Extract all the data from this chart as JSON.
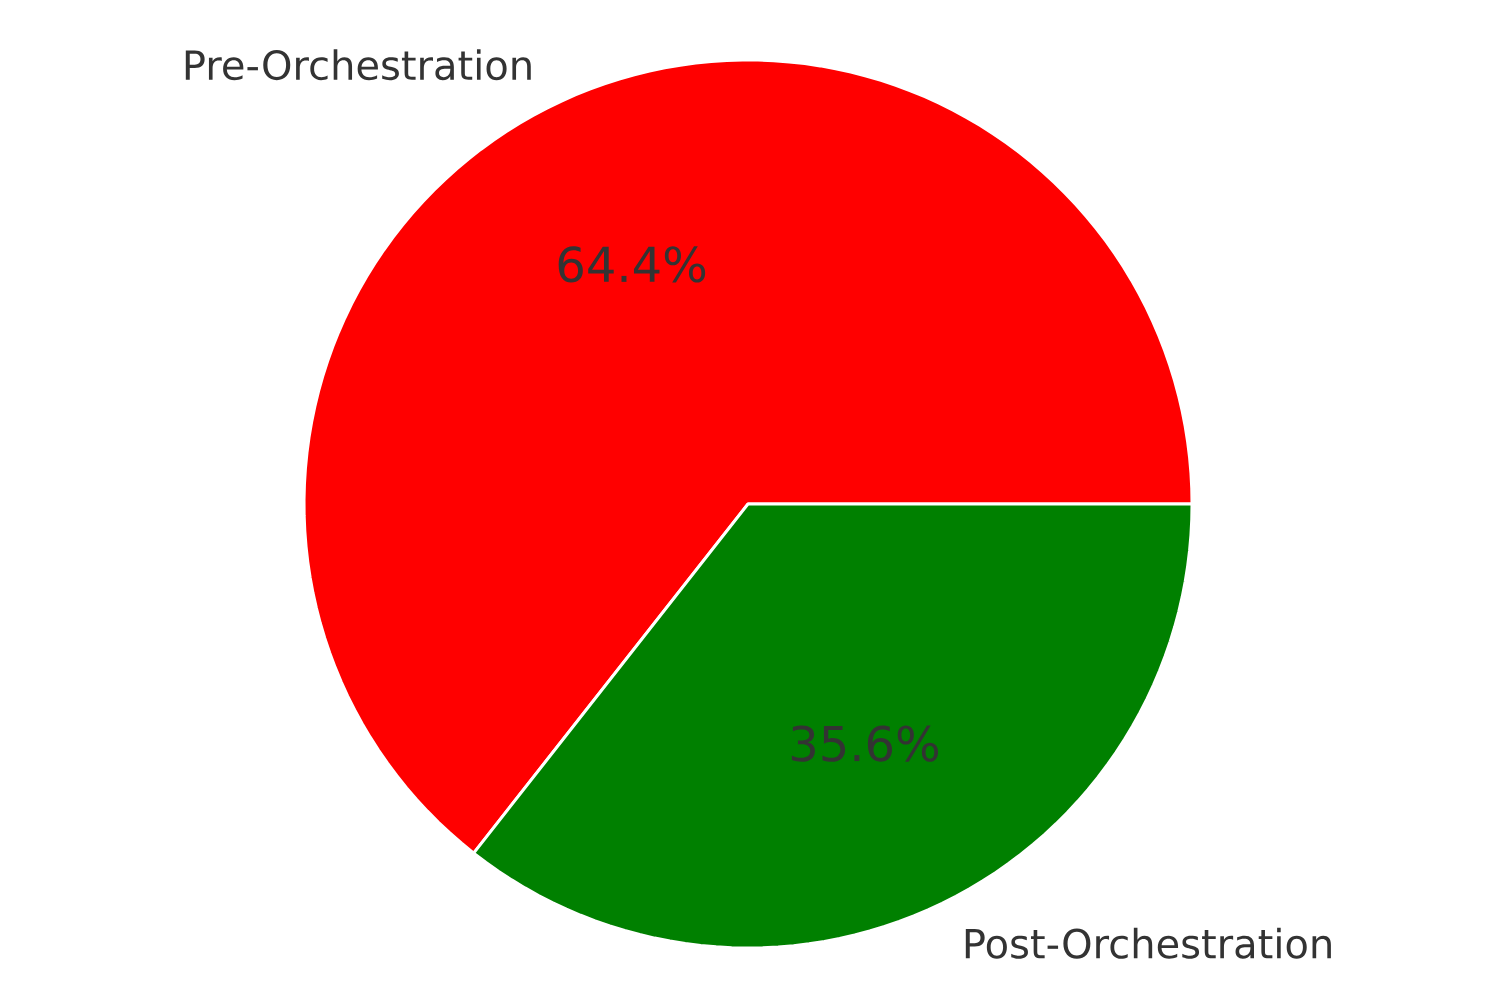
{
  "chart_data": {
    "type": "pie",
    "categories": [
      "Pre-Orchestration",
      "Post-Orchestration"
    ],
    "values": [
      64.4,
      35.6
    ],
    "colors": [
      "#ff0000",
      "#008000"
    ],
    "value_labels": [
      "64.4%",
      "35.6%"
    ]
  }
}
